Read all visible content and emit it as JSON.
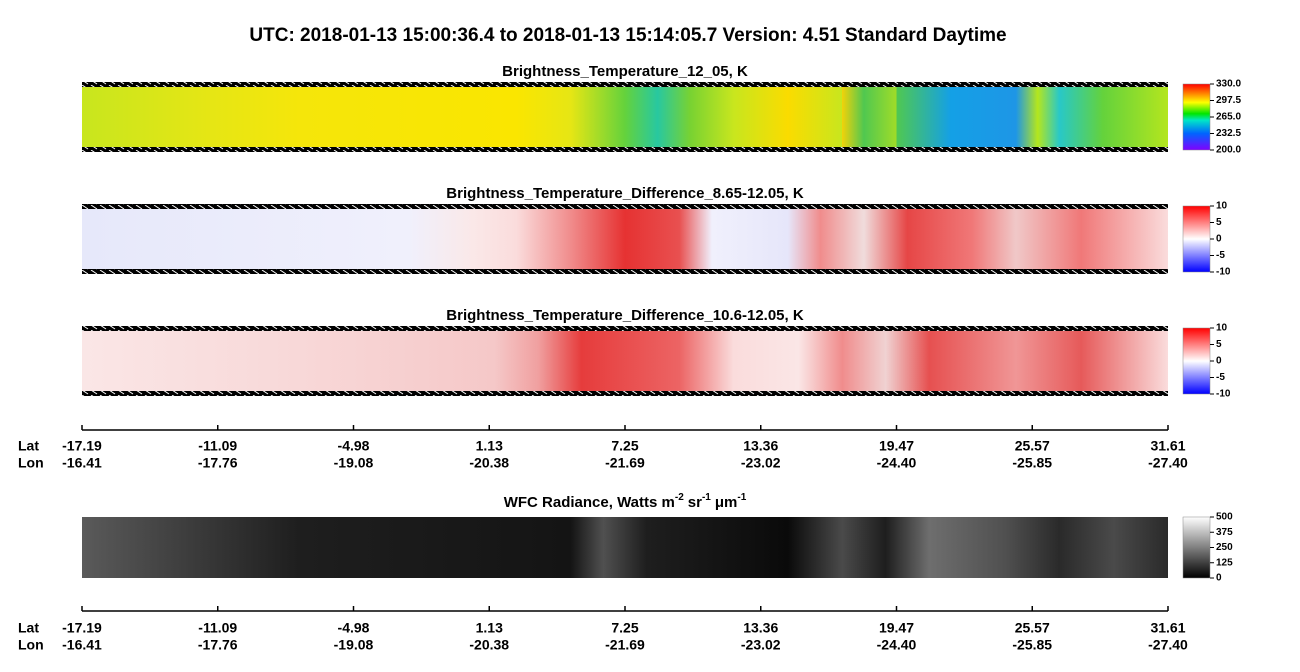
{
  "title": "UTC:  2018-01-13   15:00:36.4  to  2018-01-13   15:14:05.7    Version: 4.51  Standard Daytime",
  "panels": [
    {
      "title": "Brightness_Temperature_12_05, K",
      "colorbar": [
        "330.0",
        "297.5",
        "265.0",
        "232.5",
        "200.0"
      ]
    },
    {
      "title": "Brightness_Temperature_Difference_8.65-12.05, K",
      "colorbar": [
        "10",
        "5",
        "0",
        "-5",
        "-10"
      ]
    },
    {
      "title": "Brightness_Temperature_Difference_10.6-12.05, K",
      "colorbar": [
        "10",
        "5",
        "0",
        "-5",
        "-10"
      ]
    },
    {
      "title": {
        "text": "WFC Radiance, Watts m",
        "m_exp": "-2",
        "sr": "sr",
        "sr_exp": "-1",
        "um": "μm",
        "um_exp": "-1"
      },
      "colorbar": [
        "500",
        "375",
        "250",
        "125",
        "0"
      ]
    }
  ],
  "axes": [
    {
      "lat_label": "Lat",
      "lon_label": "Lon",
      "lat": [
        "-17.19",
        "-11.09",
        "-4.98",
        "1.13",
        "7.25",
        "13.36",
        "19.47",
        "25.57",
        "31.61"
      ],
      "lon": [
        "-16.41",
        "-17.76",
        "-19.08",
        "-20.38",
        "-21.69",
        "-23.02",
        "-24.40",
        "-25.85",
        "-27.40"
      ]
    },
    {
      "lat_label": "Lat",
      "lon_label": "Lon",
      "lat": [
        "-17.19",
        "-11.09",
        "-4.98",
        "1.13",
        "7.25",
        "13.36",
        "19.47",
        "25.57",
        "31.61"
      ],
      "lon": [
        "-16.41",
        "-17.76",
        "-19.08",
        "-20.38",
        "-21.69",
        "-23.02",
        "-24.40",
        "-25.85",
        "-27.40"
      ]
    }
  ]
}
